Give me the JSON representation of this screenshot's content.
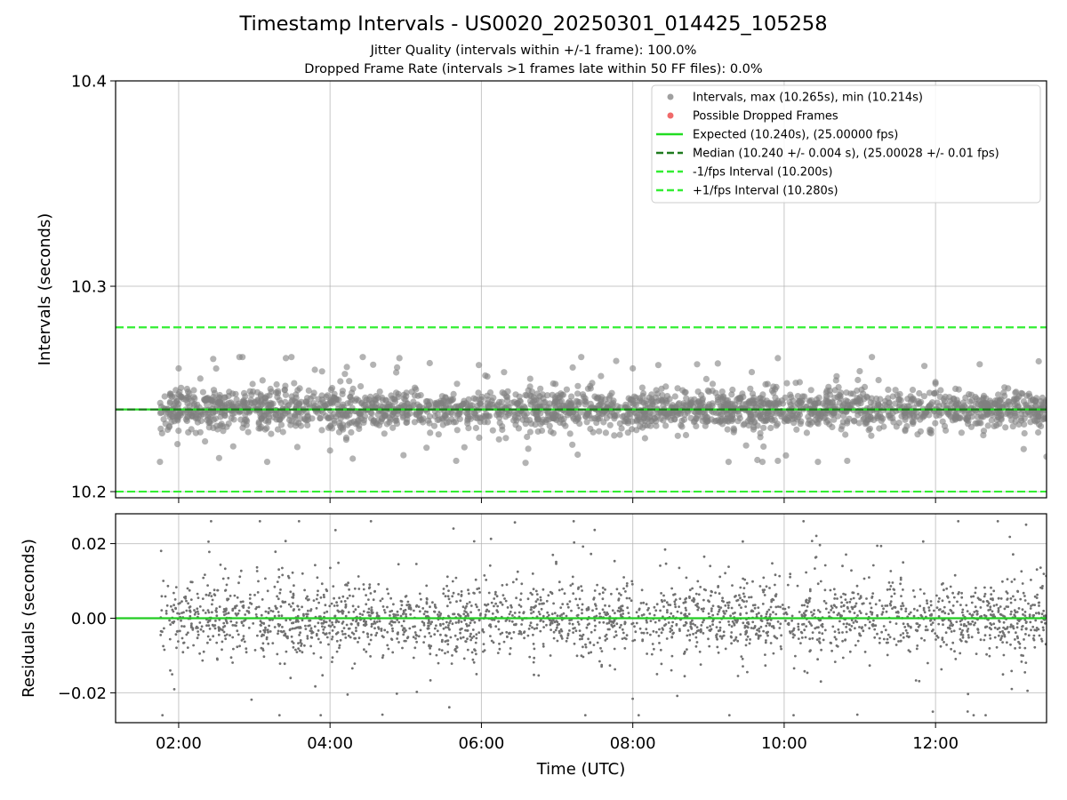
{
  "figure": {
    "title": "Timestamp Intervals - US0020_20250301_014425_105258",
    "subtitle_jitter": "Jitter Quality (intervals within +/-1 frame): 100.0%",
    "subtitle_dropped": "Dropped Frame Rate (intervals >1 frames late within 50 FF files): 0.0%"
  },
  "chart_data": [
    {
      "type": "scatter",
      "panel": "intervals",
      "xlabel": "",
      "ylabel": "Intervals (seconds)",
      "xlim": [
        "01:10",
        "13:28"
      ],
      "ylim": [
        10.197,
        10.4
      ],
      "yticks": [
        10.2,
        10.3,
        10.4
      ],
      "ytick_labels": [
        "10.2",
        "10.3",
        "10.4"
      ],
      "xticks": [
        "02:00",
        "04:00",
        "06:00",
        "08:00",
        "10:00",
        "12:00"
      ],
      "grid": true,
      "legend_position": "upper right",
      "legend": [
        {
          "label": "Intervals, max (10.265s), min (10.214s)",
          "kind": "marker",
          "color": "#a0a0a0"
        },
        {
          "label": "Possible Dropped Frames",
          "kind": "marker",
          "color": "#f06a6a"
        },
        {
          "label": "Expected (10.240s), (25.00000 fps)",
          "kind": "line",
          "color": "#22dd22"
        },
        {
          "label": "Median (10.240 +/- 0.004 s), (25.00028 +/- 0.01 fps)",
          "kind": "dashed",
          "color": "#1e7a1e"
        },
        {
          "label": "-1/fps Interval (10.200s)",
          "kind": "dashed",
          "color": "#33ee33"
        },
        {
          "label": "+1/fps Interval (10.280s)",
          "kind": "dashed",
          "color": "#33ee33"
        }
      ],
      "reference_lines": [
        {
          "name": "Expected",
          "y": 10.24,
          "style": "solid",
          "color": "#22dd22"
        },
        {
          "name": "Median",
          "y": 10.24,
          "style": "dashed",
          "color": "#1e7a1e"
        },
        {
          "name": "-1/fps Interval",
          "y": 10.2,
          "style": "dashed",
          "color": "#33ee33"
        },
        {
          "name": "+1/fps Interval",
          "y": 10.28,
          "style": "dashed",
          "color": "#33ee33"
        }
      ],
      "series": [
        {
          "name": "Intervals",
          "color": "#808080",
          "x_range": [
            "01:45",
            "13:28"
          ],
          "center": 10.24,
          "max": 10.265,
          "min": 10.214,
          "sample_points": [
            {
              "x": "01:50",
              "y": 10.238
            },
            {
              "x": "02:00",
              "y": 10.26
            },
            {
              "x": "02:30",
              "y": 10.232
            },
            {
              "x": "03:25",
              "y": 10.265
            },
            {
              "x": "04:00",
              "y": 10.22
            },
            {
              "x": "04:55",
              "y": 10.265
            },
            {
              "x": "05:40",
              "y": 10.215
            },
            {
              "x": "06:35",
              "y": 10.214
            },
            {
              "x": "08:00",
              "y": 10.26
            },
            {
              "x": "09:55",
              "y": 10.265
            },
            {
              "x": "09:55",
              "y": 10.215
            },
            {
              "x": "10:50",
              "y": 10.215
            },
            {
              "x": "12:35",
              "y": 10.262
            },
            {
              "x": "13:28",
              "y": 10.217
            }
          ]
        }
      ]
    },
    {
      "type": "scatter",
      "panel": "residuals",
      "xlabel": "Time (UTC)",
      "ylabel": "Residuals (seconds)",
      "xlim": [
        "01:10",
        "13:28"
      ],
      "ylim": [
        -0.028,
        0.028
      ],
      "yticks": [
        -0.02,
        0.0,
        0.02
      ],
      "ytick_labels": [
        "−0.02",
        "0.00",
        "0.02"
      ],
      "xticks": [
        "02:00",
        "04:00",
        "06:00",
        "08:00",
        "10:00",
        "12:00"
      ],
      "grid": true,
      "reference_lines": [
        {
          "name": "zero",
          "y": 0.0,
          "style": "solid",
          "color": "#22cc22"
        }
      ],
      "series": [
        {
          "name": "Residuals",
          "color": "#707070",
          "x_range": [
            "01:45",
            "13:28"
          ],
          "center": 0.0,
          "max": 0.026,
          "min": -0.026
        }
      ]
    }
  ],
  "colors": {
    "interval_points": "#808080",
    "dropped_points": "#f06a6a",
    "expected_line": "#22dd22",
    "median_line": "#1e7a1e",
    "fps_bounds": "#33ee33",
    "grid": "#b0b0b0"
  }
}
